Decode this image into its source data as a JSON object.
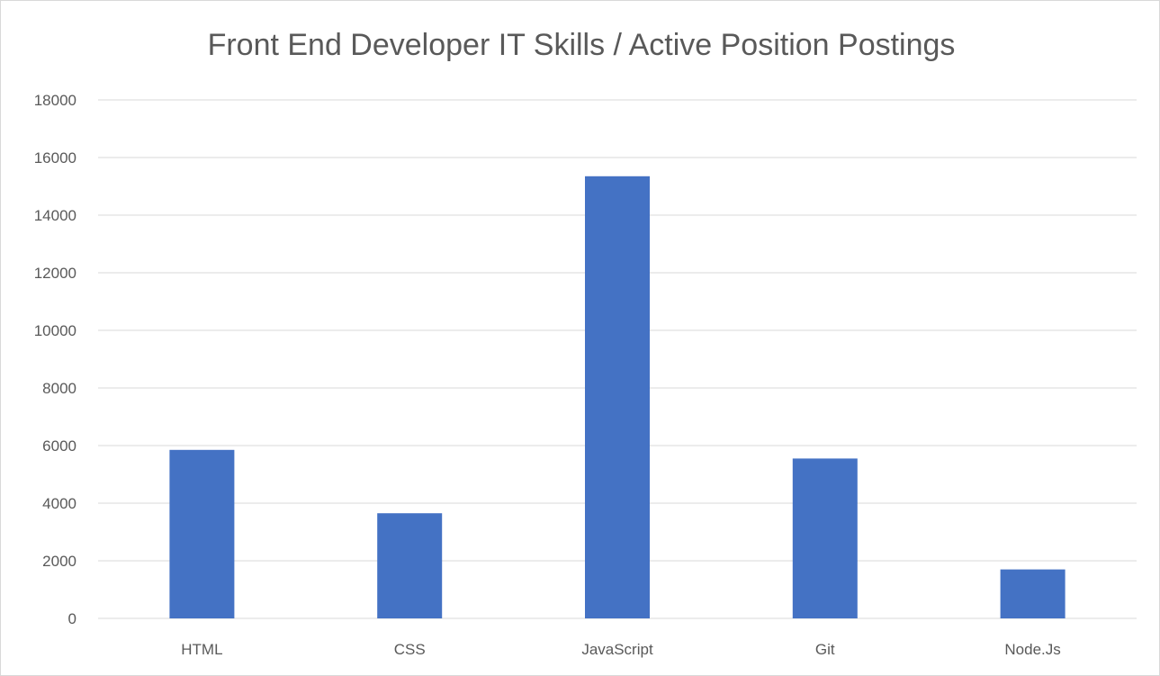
{
  "chart_data": {
    "type": "bar",
    "title": "Front End Developer IT Skills / Active Position Postings",
    "xlabel": "",
    "ylabel": "",
    "categories": [
      "HTML",
      "CSS",
      "JavaScript",
      "Git",
      "Node.Js"
    ],
    "values": [
      5850,
      3650,
      15350,
      5550,
      1700
    ],
    "ylim": [
      0,
      18000
    ],
    "yticks": [
      0,
      2000,
      4000,
      6000,
      8000,
      10000,
      12000,
      14000,
      16000,
      18000
    ],
    "grid": true,
    "legend": "none",
    "colors": {
      "bar": "#4472C4",
      "grid": "#D9D9D9",
      "text": "#595959"
    }
  }
}
